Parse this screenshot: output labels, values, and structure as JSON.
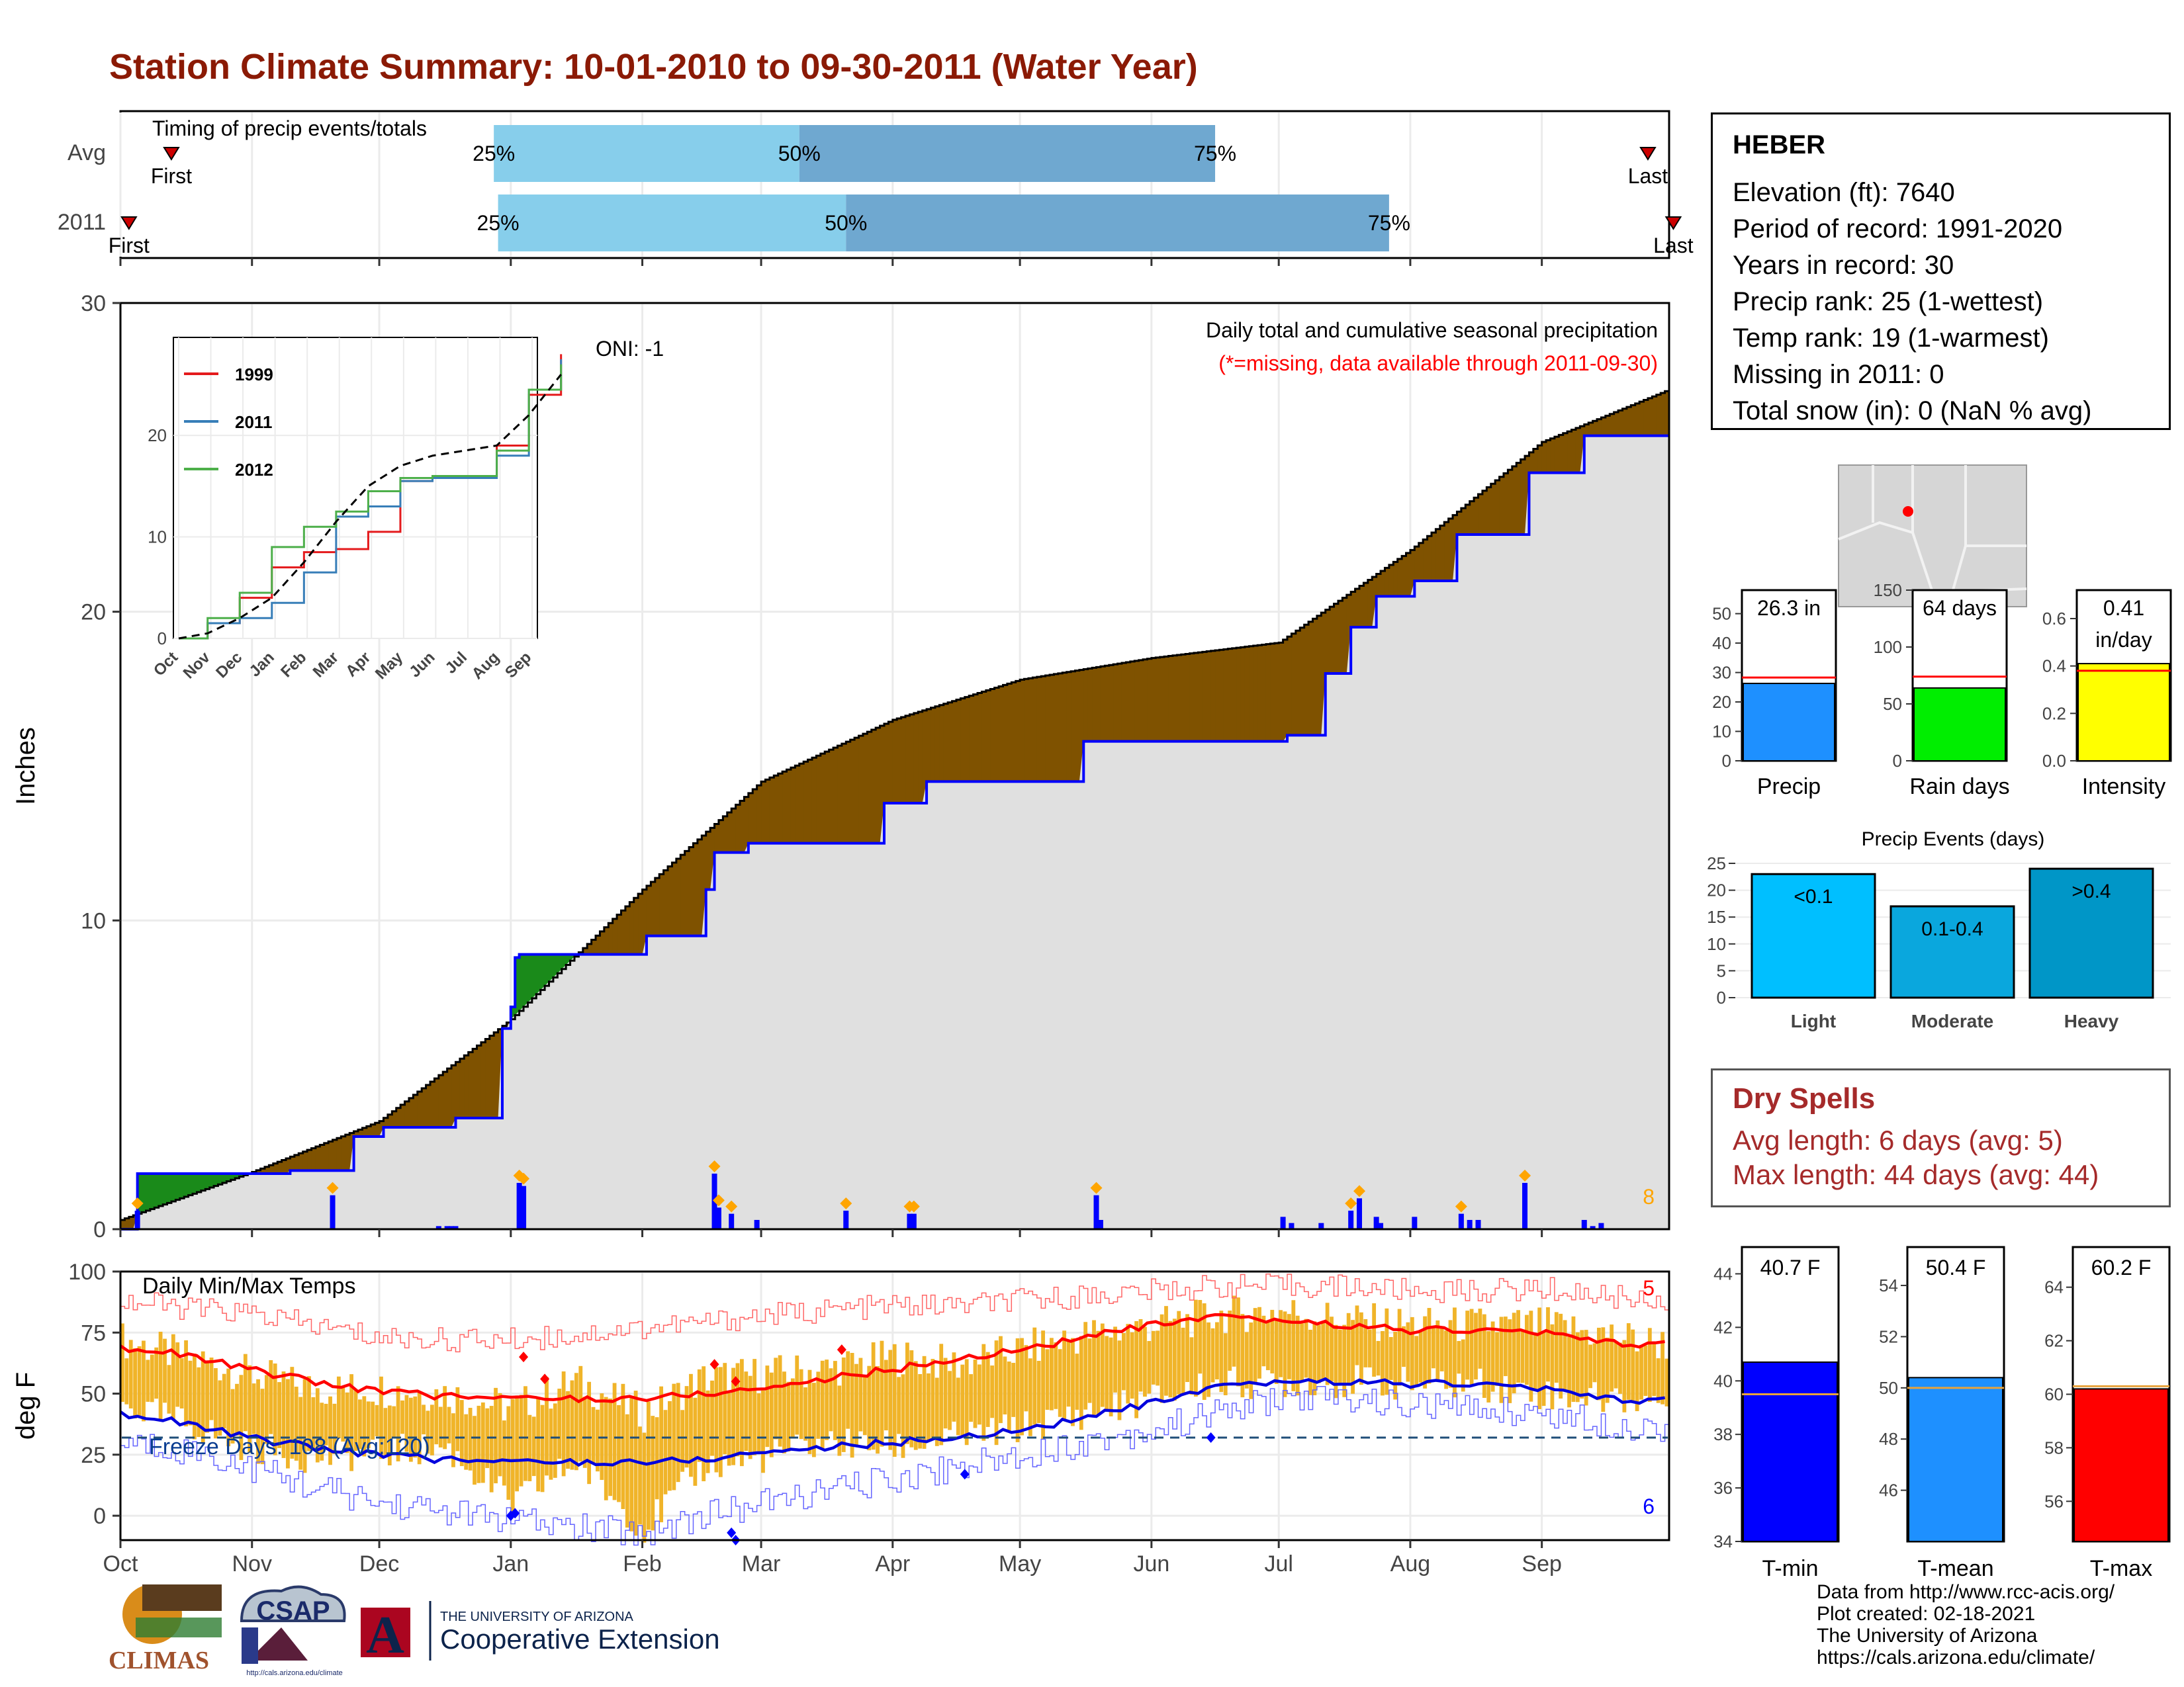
{
  "title": "Station Climate Summary: 10-01-2010 to 09-30-2011 (Water Year)",
  "colors": {
    "title": "#8b1a05",
    "brown": "#7f5200",
    "green": "#1a8a1a",
    "blue": "#0000ff",
    "grey_fill": "#e0e0e0",
    "orange": "#f0b429",
    "red": "#ff0000",
    "quartile_light": "#87ceeb",
    "quartile_dark": "#6fa8d0"
  },
  "station": {
    "name": "HEBER",
    "lines": [
      "Elevation (ft): 7640",
      "Period of record: 1991-2020",
      "Years in record: 30",
      "Precip rank: 25 (1-wettest)",
      "Temp rank: 19 (1-warmest)",
      "Missing in 2011: 0",
      "Total snow (in): 0 (NaN % avg)"
    ]
  },
  "timing_panel": {
    "label": "Timing of precip events/totals",
    "rows": [
      {
        "name": "Avg",
        "first_label": "First",
        "last_label": "Last",
        "first_day": 12,
        "last_day": 360,
        "q25_day": 88,
        "q50_day": 160,
        "q75_day": 258,
        "q25_label": "25%",
        "q50_label": "50%",
        "q75_label": "75%"
      },
      {
        "name": "2011",
        "first_label": "First",
        "last_label": "Last",
        "first_day": 2,
        "last_day": 366,
        "q25_day": 89,
        "q50_day": 171,
        "q75_day": 299,
        "q25_label": "25%",
        "q50_label": "50%",
        "q75_label": "75%"
      }
    ]
  },
  "precip_panel": {
    "ylabel": "Inches",
    "yticks": [
      0,
      10,
      20,
      30
    ],
    "oni": "ONI: -1",
    "subtitle": "Daily total and cumulative seasonal precipitation",
    "missing_note": "(*=missing, data available through 2011-09-30)",
    "corner_count": "8"
  },
  "month_labels": [
    "Oct",
    "Nov",
    "Dec",
    "Jan",
    "Feb",
    "Mar",
    "Apr",
    "May",
    "Jun",
    "Jul",
    "Aug",
    "Sep"
  ],
  "inset": {
    "yticks": [
      0,
      10,
      20
    ],
    "xticks": [
      "Oct",
      "Nov",
      "Dec",
      "Jan",
      "Feb",
      "Mar",
      "Apr",
      "May",
      "Jun",
      "Jul",
      "Aug",
      "Sep"
    ],
    "legend": [
      {
        "name": "1999",
        "color": "#e41a1c"
      },
      {
        "name": "2011",
        "color": "#377eb8"
      },
      {
        "name": "2012",
        "color": "#4daf4a"
      }
    ]
  },
  "temp_panel": {
    "ylabel": "deg F",
    "yticks": [
      0,
      25,
      50,
      75,
      100
    ],
    "label": "Daily Min/Max Temps",
    "freeze": "Freeze Days: 108 (Avg:120)",
    "record_high_count": "5",
    "record_low_count": "6",
    "freeze_line": 32
  },
  "chart_data": [
    {
      "type": "area",
      "title": "Daily total and cumulative seasonal precipitation",
      "ylabel": "Inches",
      "ylim": [
        0,
        30
      ],
      "x_months": [
        "Oct",
        "Nov",
        "Dec",
        "Jan",
        "Feb",
        "Mar",
        "Apr",
        "May",
        "Jun",
        "Jul",
        "Aug",
        "Sep"
      ],
      "series": [
        {
          "name": "Average cumulative",
          "x_day": [
            0,
            30,
            61,
            92,
            123,
            151,
            182,
            212,
            243,
            273,
            304,
            335,
            365
          ],
          "values": [
            0.3,
            1.8,
            3.5,
            6.8,
            11.0,
            14.5,
            16.5,
            17.8,
            18.5,
            19.0,
            22.0,
            25.5,
            27.2
          ]
        },
        {
          "name": "2011 cumulative",
          "x_day": [
            0,
            4,
            20,
            40,
            50,
            55,
            62,
            79,
            90,
            92,
            93,
            94,
            105,
            124,
            138,
            140,
            148,
            170,
            180,
            190,
            226,
            227,
            275,
            284,
            290,
            296,
            305,
            315,
            332,
            345,
            365
          ],
          "values": [
            0,
            1.8,
            1.8,
            1.9,
            1.9,
            3.0,
            3.3,
            3.6,
            6.5,
            7.2,
            8.8,
            8.9,
            8.9,
            9.5,
            11.0,
            12.2,
            12.5,
            12.5,
            13.8,
            14.5,
            14.5,
            15.8,
            16.0,
            18.0,
            19.5,
            20.5,
            21.0,
            22.5,
            24.5,
            25.7,
            25.7
          ]
        },
        {
          "name": "2011 daily",
          "x_day": [
            4,
            50,
            75,
            77,
            78,
            79,
            94,
            95,
            140,
            141,
            144,
            150,
            171,
            186,
            187,
            230,
            231,
            274,
            276,
            283,
            290,
            292,
            296,
            297,
            305,
            316,
            318,
            320,
            331,
            345,
            347,
            349
          ],
          "values": [
            0.6,
            1.1,
            0.1,
            0.1,
            0.1,
            0.1,
            1.5,
            1.4,
            1.8,
            0.7,
            0.5,
            0.3,
            0.6,
            0.5,
            0.5,
            1.1,
            0.3,
            0.4,
            0.2,
            0.2,
            0.6,
            1.0,
            0.4,
            0.2,
            0.4,
            0.5,
            0.3,
            0.3,
            1.5,
            0.3,
            0.1,
            0.2
          ]
        }
      ]
    },
    {
      "type": "line",
      "title": "",
      "xlabel": "",
      "ylabel": "",
      "ylim": [
        0,
        29
      ],
      "x": [
        "Oct",
        "Nov",
        "Dec",
        "Jan",
        "Feb",
        "Mar",
        "Apr",
        "May",
        "Jun",
        "Jul",
        "Aug",
        "Sep"
      ],
      "series": [
        {
          "name": "1999",
          "values": [
            1.5,
            4.0,
            7.0,
            8.5,
            8.8,
            10.5,
            15.5,
            16.0,
            16.0,
            19.0,
            24.0,
            28.0
          ]
        },
        {
          "name": "2011",
          "values": [
            1.5,
            2.0,
            3.5,
            6.5,
            12.0,
            13.0,
            15.5,
            15.8,
            15.8,
            18.0,
            24.5,
            27.5
          ]
        },
        {
          "name": "2012",
          "values": [
            2.0,
            4.5,
            9.0,
            11.0,
            12.5,
            14.5,
            15.8,
            16.0,
            16.0,
            18.5,
            24.5,
            27.0
          ]
        },
        {
          "name": "Average",
          "values": [
            0.5,
            2.0,
            4.0,
            7.5,
            11.5,
            15.0,
            17.0,
            18.0,
            18.5,
            19.0,
            22.0,
            26.0
          ]
        }
      ]
    },
    {
      "type": "line",
      "title": "Daily Min/Max Temps",
      "ylabel": "deg F",
      "ylim": [
        -10,
        100
      ],
      "x_day": [
        0,
        15,
        30,
        45,
        61,
        76,
        92,
        107,
        123,
        137,
        151,
        166,
        182,
        197,
        212,
        227,
        243,
        258,
        273,
        289,
        304,
        319,
        335,
        350,
        365
      ],
      "series": [
        {
          "name": "Average max",
          "values": [
            69,
            66,
            60,
            55,
            51,
            49,
            48,
            48,
            48,
            50,
            52,
            56,
            60,
            64,
            68,
            73,
            78,
            81,
            80,
            78,
            76,
            76,
            75,
            71,
            70
          ]
        },
        {
          "name": "Average min",
          "values": [
            42,
            38,
            32,
            28,
            25,
            23,
            22,
            22,
            22,
            23,
            26,
            28,
            30,
            32,
            35,
            40,
            46,
            52,
            55,
            55,
            54,
            54,
            52,
            48,
            47
          ]
        },
        {
          "name": "Record max",
          "values": [
            88,
            85,
            83,
            78,
            73,
            72,
            72,
            74,
            77,
            79,
            82,
            84,
            86,
            86,
            88,
            90,
            92,
            94,
            94,
            94,
            92,
            92,
            93,
            90,
            88
          ]
        },
        {
          "name": "Record min",
          "values": [
            30,
            27,
            20,
            12,
            5,
            2,
            -2,
            -5,
            -7,
            0,
            5,
            10,
            15,
            20,
            25,
            30,
            35,
            42,
            48,
            48,
            45,
            44,
            42,
            38,
            35
          ]
        },
        {
          "name": "2011 max",
          "values": [
            72,
            65,
            58,
            52,
            52,
            50,
            44,
            55,
            42,
            56,
            58,
            60,
            65,
            62,
            68,
            74,
            78,
            82,
            84,
            80,
            78,
            78,
            78,
            74,
            70
          ]
        },
        {
          "name": "2011 min",
          "values": [
            45,
            38,
            28,
            24,
            26,
            28,
            5,
            22,
            -5,
            20,
            24,
            30,
            28,
            32,
            36,
            42,
            48,
            54,
            55,
            55,
            54,
            54,
            50,
            48,
            47
          ]
        }
      ]
    },
    {
      "type": "bar",
      "title": "",
      "categories": [
        "Precip",
        "Rain days",
        "Intensity"
      ],
      "series": [
        {
          "name": "2011",
          "values": [
            26.3,
            64,
            0.41
          ]
        },
        {
          "name": "Average",
          "values": [
            28.3,
            74,
            0.38
          ]
        }
      ],
      "labels": [
        "26.3 in",
        "64 days",
        "0.41 in/day"
      ],
      "ylims": [
        [
          0,
          58
        ],
        [
          0,
          150
        ],
        [
          0,
          0.72
        ]
      ]
    },
    {
      "type": "bar",
      "title": "Precip Events (days)",
      "categories": [
        "Light",
        "Moderate",
        "Heavy"
      ],
      "values": [
        23,
        17,
        24
      ],
      "labels": [
        "<0.1",
        "0.1-0.4",
        ">0.4"
      ],
      "ylim": [
        0,
        25
      ]
    },
    {
      "type": "bar",
      "title": "",
      "categories": [
        "T-min",
        "T-mean",
        "T-max"
      ],
      "series": [
        {
          "name": "2011",
          "values": [
            40.7,
            50.4,
            60.2
          ]
        },
        {
          "name": "Average",
          "values": [
            39.5,
            50.0,
            60.3
          ]
        }
      ],
      "labels": [
        "40.7 F",
        "50.4 F",
        "60.2 F"
      ],
      "ylims": [
        [
          34,
          45
        ],
        [
          44,
          55.5
        ],
        [
          54.5,
          65.5
        ]
      ]
    }
  ],
  "mini_bars": {
    "precip": {
      "label": "Precip",
      "value_label": "26.3 in",
      "yticks": [
        0,
        10,
        20,
        30,
        40,
        50
      ]
    },
    "raindays": {
      "label": "Rain days",
      "value_label": "64 days",
      "yticks": [
        0,
        50,
        100,
        150
      ]
    },
    "intensity": {
      "label": "Intensity",
      "value_label": "0.41",
      "value_label2": "in/day",
      "yticks": [
        "0.0",
        "0.2",
        "0.4",
        "0.6"
      ]
    }
  },
  "events": {
    "title": "Precip Events (days)",
    "yticks": [
      0,
      5,
      10,
      15,
      20,
      25
    ]
  },
  "temps": {
    "tmin": {
      "label": "T-min",
      "value_label": "40.7 F",
      "yticks": [
        34,
        36,
        38,
        40,
        42,
        44
      ]
    },
    "tmean": {
      "label": "T-mean",
      "value_label": "50.4 F",
      "yticks": [
        46,
        48,
        50,
        52,
        54
      ]
    },
    "tmax": {
      "label": "T-max",
      "value_label": "60.2 F",
      "yticks": [
        56,
        58,
        60,
        62,
        64
      ]
    }
  },
  "dry_spells": {
    "title": "Dry Spells",
    "avg": "Avg length: 6 days (avg: 5)",
    "max": "Max length: 44 days (avg: 44)"
  },
  "credits": [
    "Data from http://www.rcc-acis.org/",
    "Plot created: 02-18-2021",
    "The University of Arizona",
    "https://cals.arizona.edu/climate/"
  ],
  "logos": {
    "climas": "CLIMAS",
    "csap": "CSAP",
    "csap_url": "http://cals.arizona.edu/climate",
    "ua_small": "THE UNIVERSITY OF ARIZONA",
    "ua_big": "Cooperative Extension",
    "ua_letter": "A"
  }
}
